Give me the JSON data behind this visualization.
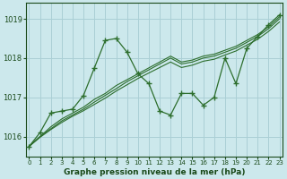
{
  "title": "Graphe pression niveau de la mer (hPa)",
  "bg_color": "#cce8ec",
  "grid_color": "#aacfd5",
  "line_color": "#2d6e2d",
  "ylim": [
    1015.5,
    1019.4
  ],
  "xlim": [
    -0.3,
    23.3
  ],
  "yticks": [
    1016,
    1017,
    1018,
    1019
  ],
  "xticks": [
    0,
    1,
    2,
    3,
    4,
    5,
    6,
    7,
    8,
    9,
    10,
    11,
    12,
    13,
    14,
    15,
    16,
    17,
    18,
    19,
    20,
    21,
    22,
    23
  ],
  "series_volatile": [
    1015.75,
    1016.1,
    1016.6,
    1016.65,
    1016.7,
    1017.05,
    1017.75,
    1018.45,
    1018.5,
    1018.15,
    1017.6,
    1017.35,
    1016.65,
    1016.55,
    1017.1,
    1017.1,
    1016.8,
    1017.0,
    1018.0,
    1017.35,
    1018.25,
    1018.55,
    1018.85,
    1019.1
  ],
  "series_linear1": [
    1015.75,
    1016.0,
    1016.25,
    1016.45,
    1016.6,
    1016.75,
    1016.95,
    1017.1,
    1017.3,
    1017.45,
    1017.6,
    1017.75,
    1017.9,
    1018.05,
    1017.9,
    1017.95,
    1018.05,
    1018.1,
    1018.2,
    1018.3,
    1018.45,
    1018.6,
    1018.8,
    1019.05
  ],
  "series_linear2": [
    1015.75,
    1016.0,
    1016.2,
    1016.4,
    1016.55,
    1016.7,
    1016.88,
    1017.05,
    1017.22,
    1017.4,
    1017.55,
    1017.7,
    1017.85,
    1018.0,
    1017.85,
    1017.9,
    1018.0,
    1018.05,
    1018.15,
    1018.25,
    1018.4,
    1018.55,
    1018.75,
    1019.0
  ],
  "series_linear3": [
    1015.75,
    1015.98,
    1016.18,
    1016.36,
    1016.52,
    1016.66,
    1016.82,
    1016.98,
    1017.16,
    1017.32,
    1017.48,
    1017.62,
    1017.76,
    1017.9,
    1017.76,
    1017.82,
    1017.92,
    1017.97,
    1018.08,
    1018.18,
    1018.33,
    1018.48,
    1018.68,
    1018.92
  ]
}
